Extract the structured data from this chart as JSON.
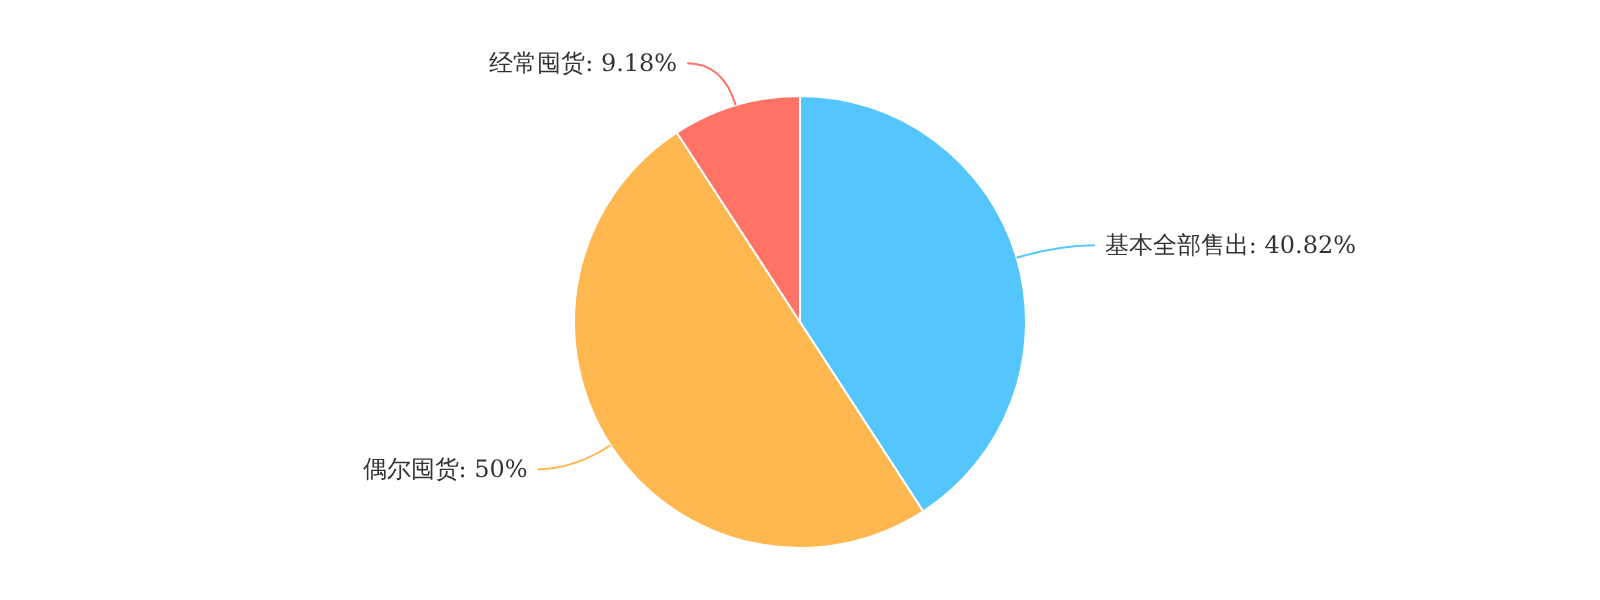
{
  "chart_data": {
    "type": "pie",
    "categories": [
      "基本全部售出",
      "偶尔囤货",
      "经常囤货"
    ],
    "values": [
      40.82,
      50,
      9.18
    ],
    "value_labels": [
      "40.82%",
      "50%",
      "9.18%"
    ],
    "colors": [
      "#55c6fd",
      "#ffb74f",
      "#ff7366"
    ]
  }
}
